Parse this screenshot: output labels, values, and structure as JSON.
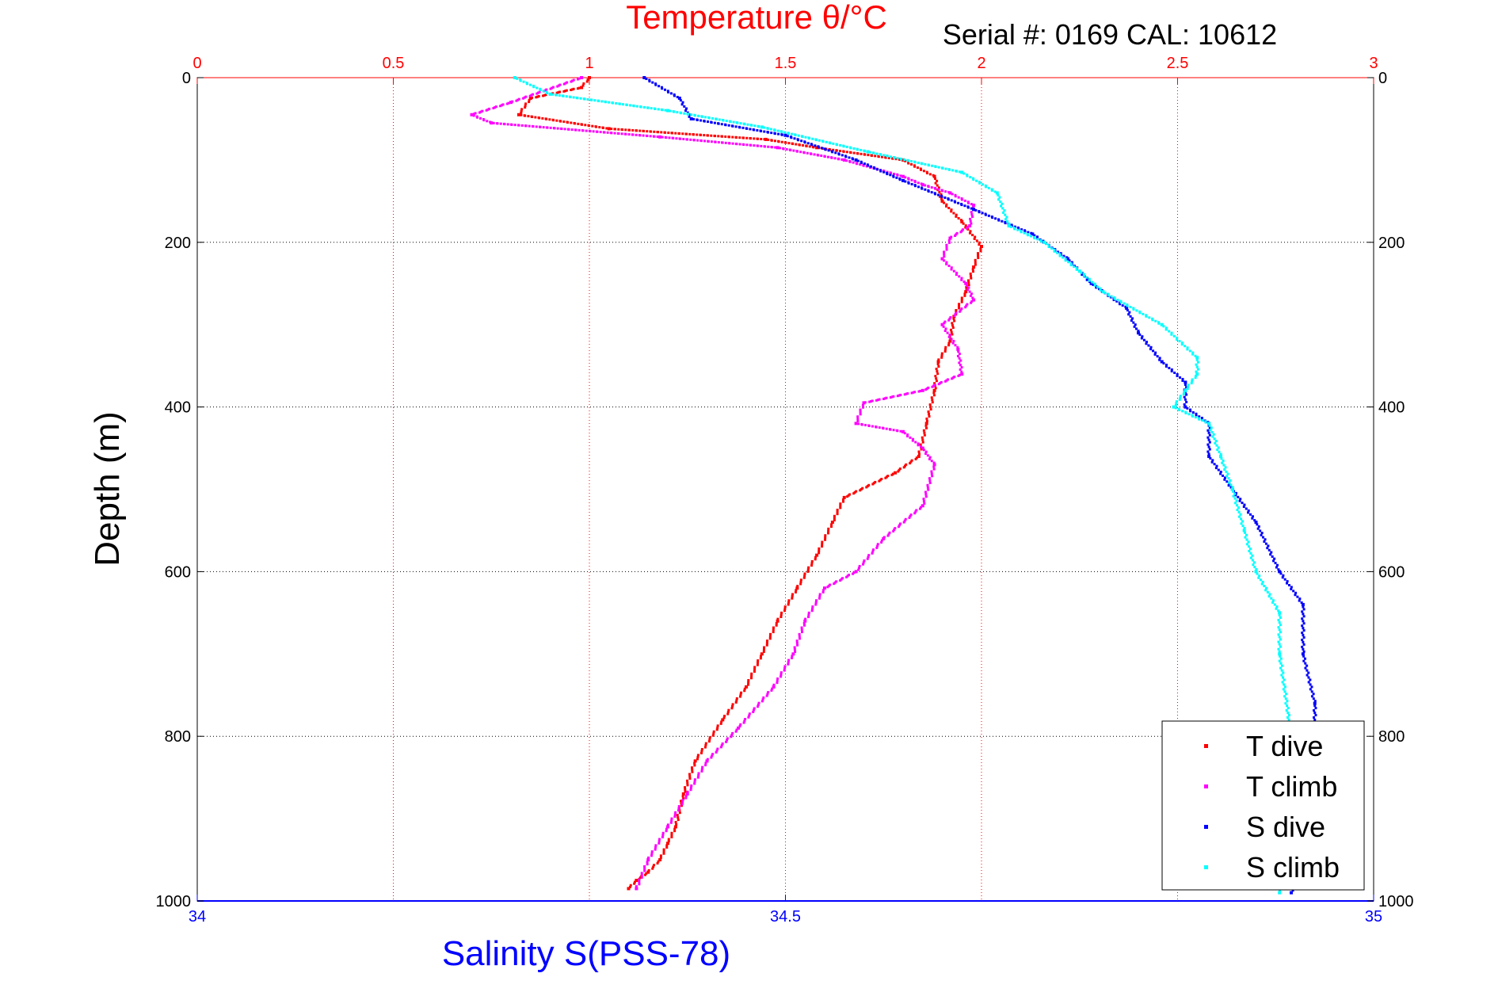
{
  "chart_data": {
    "type": "scatter",
    "title": "Temperature θ/°C",
    "subtitle": "Serial #: 0169 CAL: 10612",
    "xlabel": "Salinity S(PSS-78)",
    "ylabel": "Depth (m)",
    "x_top": {
      "label": "Temperature θ/°C",
      "range": [
        0,
        3
      ],
      "ticks": [
        "0",
        "0.5",
        "1",
        "1.5",
        "2",
        "2.5",
        "3"
      ],
      "color": "#ff0000"
    },
    "x_bottom": {
      "label": "Salinity S(PSS-78)",
      "range": [
        34,
        35
      ],
      "ticks": [
        "34",
        "34.5",
        "35"
      ],
      "color": "#0000ff"
    },
    "y": {
      "range": [
        0,
        1000
      ],
      "reversed": true,
      "ticks": [
        "0",
        "200",
        "400",
        "600",
        "800",
        "1000"
      ]
    },
    "grid": true,
    "legend_position": "bottom-right",
    "series": [
      {
        "name": "T dive",
        "color": "#ff0000",
        "axis": "top",
        "x": [
          1.0,
          0.98,
          0.85,
          0.82,
          1.05,
          1.45,
          1.58,
          1.8,
          1.88,
          1.9,
          1.95,
          2.0,
          1.98,
          1.96,
          1.93,
          1.92,
          1.89,
          1.88,
          1.86,
          1.84,
          1.78,
          1.65,
          1.62,
          1.58,
          1.53,
          1.48,
          1.44,
          1.4,
          1.34,
          1.27,
          1.24,
          1.22,
          1.2,
          1.18,
          1.15,
          1.12,
          1.1
        ],
        "y": [
          0,
          12,
          25,
          45,
          62,
          75,
          85,
          100,
          120,
          150,
          175,
          205,
          230,
          260,
          290,
          320,
          345,
          380,
          420,
          460,
          480,
          510,
          540,
          580,
          620,
          660,
          700,
          740,
          780,
          830,
          870,
          910,
          930,
          950,
          965,
          975,
          985
        ]
      },
      {
        "name": "T climb",
        "color": "#ff00ff",
        "axis": "top",
        "x": [
          0.98,
          0.8,
          0.7,
          0.75,
          1.18,
          1.48,
          1.65,
          1.8,
          1.85,
          1.92,
          1.98,
          1.97,
          1.92,
          1.9,
          1.96,
          1.98,
          1.9,
          1.94,
          1.95,
          1.85,
          1.7,
          1.68,
          1.8,
          1.85,
          1.88,
          1.85,
          1.75,
          1.68,
          1.6,
          1.55,
          1.52,
          1.47,
          1.38,
          1.3,
          1.25,
          1.2,
          1.15,
          1.12
        ],
        "y": [
          0,
          30,
          45,
          55,
          72,
          85,
          100,
          120,
          130,
          140,
          155,
          180,
          195,
          220,
          250,
          270,
          300,
          330,
          360,
          380,
          395,
          420,
          430,
          450,
          470,
          520,
          560,
          600,
          620,
          660,
          700,
          740,
          790,
          830,
          870,
          910,
          950,
          985
        ]
      },
      {
        "name": "S dive",
        "color": "#0000ff",
        "axis": "bottom",
        "x": [
          34.38,
          34.41,
          34.42,
          34.5,
          34.56,
          34.6,
          34.66,
          34.71,
          34.74,
          34.76,
          34.79,
          34.8,
          34.82,
          34.84,
          34.84,
          34.86,
          34.86,
          34.88,
          34.9,
          34.92,
          34.94,
          34.94,
          34.95,
          34.95,
          34.95,
          34.94,
          34.93
        ],
        "y": [
          0,
          25,
          50,
          70,
          100,
          125,
          160,
          190,
          220,
          250,
          280,
          310,
          345,
          370,
          400,
          420,
          460,
          500,
          540,
          600,
          640,
          700,
          760,
          820,
          880,
          940,
          990
        ]
      },
      {
        "name": "S climb",
        "color": "#00ffff",
        "axis": "bottom",
        "x": [
          34.27,
          34.3,
          34.4,
          34.48,
          34.57,
          34.65,
          34.68,
          34.69,
          34.72,
          34.75,
          34.77,
          34.82,
          34.85,
          34.85,
          34.84,
          34.83,
          34.86,
          34.87,
          34.88,
          34.89,
          34.9,
          34.92,
          34.92,
          34.93,
          34.93,
          34.92
        ],
        "y": [
          0,
          20,
          40,
          60,
          90,
          115,
          140,
          180,
          200,
          235,
          260,
          300,
          340,
          360,
          380,
          400,
          420,
          460,
          500,
          550,
          600,
          650,
          700,
          800,
          900,
          990
        ]
      }
    ]
  }
}
